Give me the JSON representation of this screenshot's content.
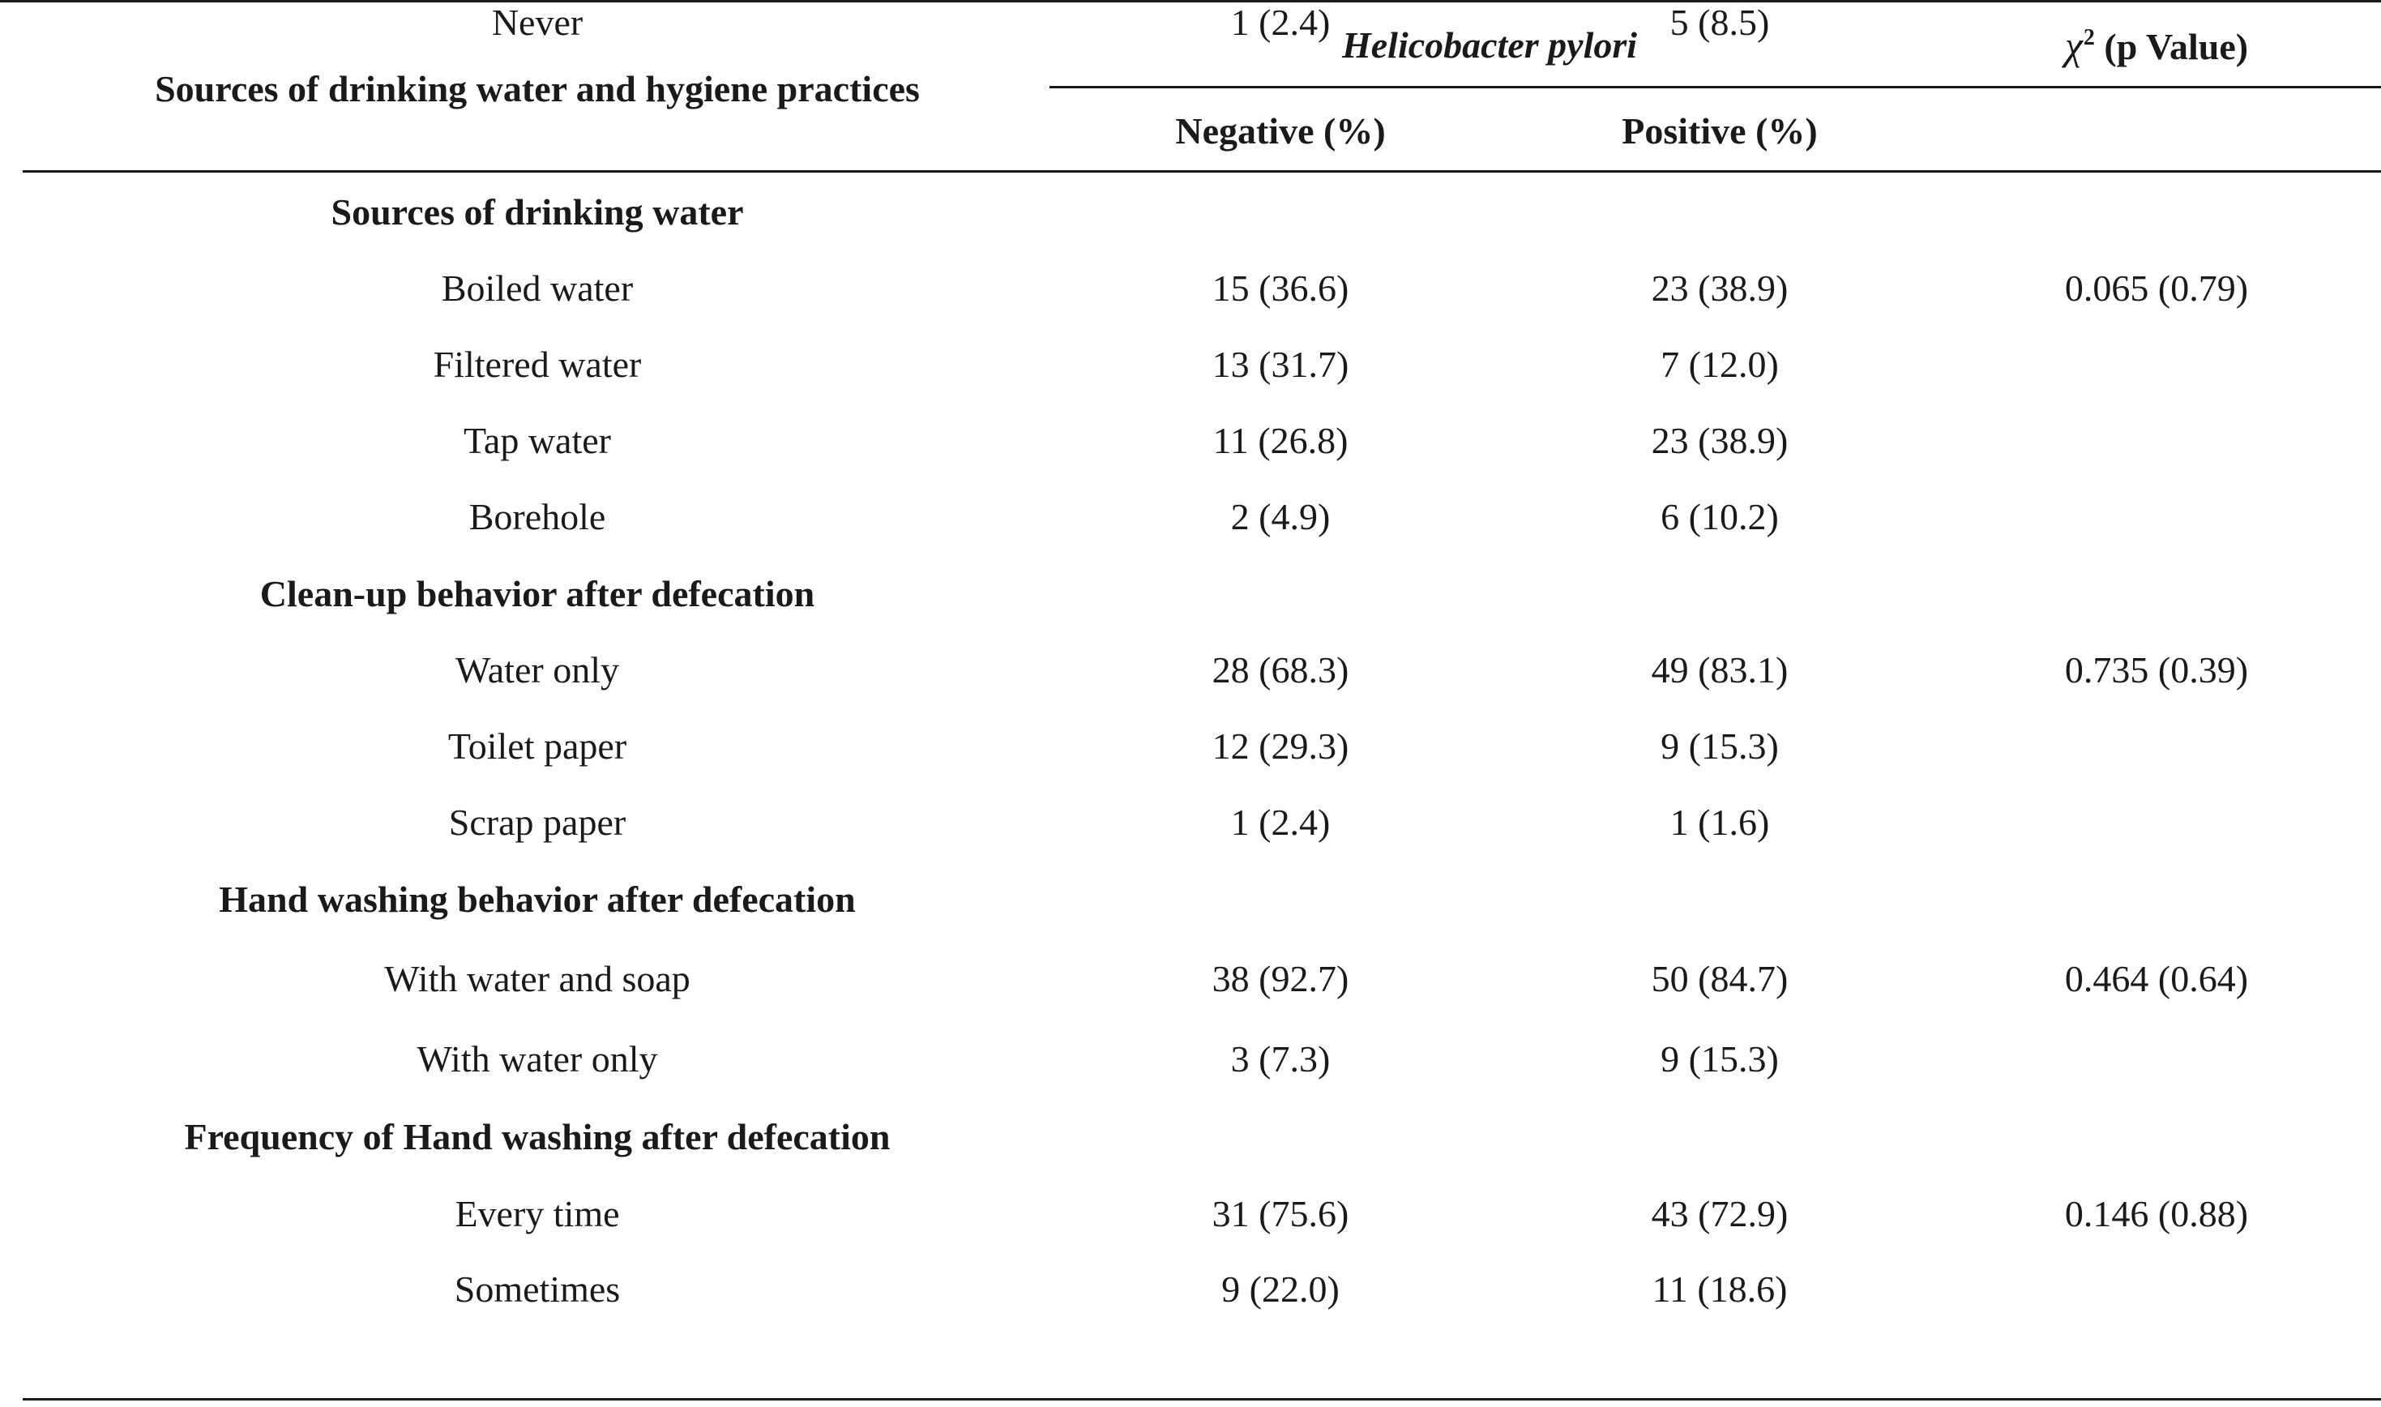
{
  "header": {
    "row_label": "Sources of drinking water and hygiene practices",
    "organism": "Helicobacter pylori",
    "chi_symbol": "χ",
    "chi_sup": "2",
    "chi_rest": " (p Value)",
    "negative": "Negative (%)",
    "positive": "Positive (%)"
  },
  "groups": [
    {
      "title": "Sources of drinking water",
      "rows": [
        {
          "label": "Boiled water",
          "negative": "15 (36.6)",
          "positive": "23 (38.9)",
          "chi": "0.065 (0.79)"
        },
        {
          "label": "Filtered water",
          "negative": "13 (31.7)",
          "positive": "7 (12.0)",
          "chi": ""
        },
        {
          "label": "Tap water",
          "negative": "11 (26.8)",
          "positive": "23 (38.9)",
          "chi": ""
        },
        {
          "label": "Borehole",
          "negative": "2 (4.9)",
          "positive": "6 (10.2)",
          "chi": ""
        }
      ]
    },
    {
      "title": "Clean-up behavior after defecation",
      "rows": [
        {
          "label": "Water only",
          "negative": "28 (68.3)",
          "positive": "49 (83.1)",
          "chi": "0.735 (0.39)"
        },
        {
          "label": "Toilet paper",
          "negative": "12 (29.3)",
          "positive": "9 (15.3)",
          "chi": ""
        },
        {
          "label": "Scrap paper",
          "negative": "1 (2.4)",
          "positive": "1 (1.6)",
          "chi": ""
        }
      ]
    },
    {
      "title": "Hand washing behavior after defecation",
      "rows": [
        {
          "label": "With water and soap",
          "negative": "38 (92.7)",
          "positive": "50 (84.7)",
          "chi": "0.464 (0.64)"
        },
        {
          "label": "With water only",
          "negative": "3 (7.3)",
          "positive": "9 (15.3)",
          "chi": ""
        }
      ]
    },
    {
      "title": "Frequency of Hand washing after defecation",
      "rows": [
        {
          "label": "Every time",
          "negative": "31 (75.6)",
          "positive": "43 (72.9)",
          "chi": "0.146 (0.88)"
        },
        {
          "label": "Sometimes",
          "negative": "9 (22.0)",
          "positive": "11 (18.6)",
          "chi": ""
        },
        {
          "label": "Never",
          "negative": "1 (2.4)",
          "positive": "5 (8.5)",
          "chi": ""
        }
      ]
    }
  ]
}
